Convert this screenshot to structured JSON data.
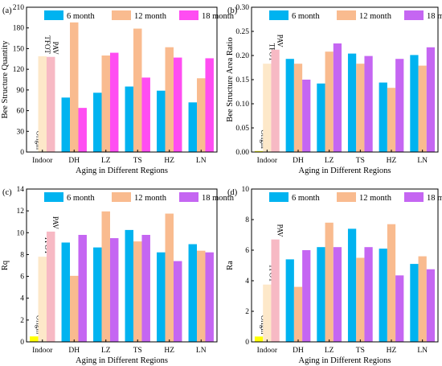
{
  "chart_data": [
    {
      "type": "bar",
      "panel_label": "(a)",
      "categories": [
        "Indoor",
        "DH",
        "LZ",
        "TS",
        "HZ",
        "LN"
      ],
      "xlabel": "Aging in Different Regions",
      "ylabel": "Bee Structure Quantity",
      "ylim": [
        0,
        210
      ],
      "yticks": [
        "0",
        "30",
        "60",
        "90",
        "120",
        "150",
        "180",
        "210"
      ],
      "grid": false,
      "legend_position": "top",
      "series": [
        {
          "name": "6 month",
          "color": "#00b3f0",
          "values": [
            null,
            79,
            86,
            95,
            89,
            72
          ]
        },
        {
          "name": "12 month",
          "color": "#f9bb8f",
          "values": [
            null,
            188,
            140,
            179,
            152,
            107
          ]
        },
        {
          "name": "18 month",
          "color": "#ff4df2",
          "values": [
            null,
            64,
            144,
            108,
            137,
            136
          ]
        }
      ],
      "indoor_bars": [
        {
          "label": "Origin",
          "value": 0,
          "color": "#ffff00"
        },
        {
          "label": "TFOT",
          "value": 139,
          "color": "#fde8c9"
        },
        {
          "label": "PAV",
          "value": 138,
          "color": "#f7b9c4"
        }
      ]
    },
    {
      "type": "bar",
      "panel_label": "(b)",
      "categories": [
        "Indoor",
        "DH",
        "LZ",
        "TS",
        "HZ",
        "LN"
      ],
      "xlabel": "Aging in Different Regions",
      "ylabel": "Bee Structure Area Ratio",
      "ylim": [
        0,
        0.3
      ],
      "yticks": [
        "0.00",
        "0.05",
        "0.10",
        "0.15",
        "0.20",
        "0.25",
        "0.30"
      ],
      "grid": false,
      "legend_position": "top",
      "series": [
        {
          "name": "6 month",
          "color": "#00b3f0",
          "values": [
            null,
            0.193,
            0.142,
            0.204,
            0.144,
            0.201
          ]
        },
        {
          "name": "12 month",
          "color": "#f9bb8f",
          "values": [
            null,
            0.183,
            0.208,
            0.183,
            0.133,
            0.179
          ]
        },
        {
          "name": "18 month",
          "color": "#c566f2",
          "values": [
            null,
            0.15,
            0.225,
            0.199,
            0.193,
            0.217
          ]
        }
      ],
      "indoor_bars": [
        {
          "label": "Origin",
          "value": 0.002,
          "color": "#ffff00"
        },
        {
          "label": "TFOT",
          "value": 0.183,
          "color": "#fde8c9"
        },
        {
          "label": "PAV",
          "value": 0.212,
          "color": "#f7b9c4"
        }
      ]
    },
    {
      "type": "bar",
      "panel_label": "(c)",
      "categories": [
        "Indoor",
        "DH",
        "LZ",
        "TS",
        "HZ",
        "LN"
      ],
      "xlabel": "Aging in Different Regions",
      "ylabel": "Rq",
      "ylim": [
        0,
        14
      ],
      "yticks": [
        "0",
        "2",
        "4",
        "6",
        "8",
        "10",
        "12",
        "14"
      ],
      "grid": false,
      "legend_position": "top",
      "series": [
        {
          "name": "6 month",
          "color": "#00b3f0",
          "values": [
            null,
            9.1,
            8.65,
            10.25,
            8.2,
            8.95
          ]
        },
        {
          "name": "12 month",
          "color": "#f9bb8f",
          "values": [
            null,
            6.05,
            11.95,
            9.2,
            11.75,
            8.35
          ]
        },
        {
          "name": "18 month",
          "color": "#c566f2",
          "values": [
            null,
            9.8,
            9.5,
            9.8,
            7.4,
            8.2
          ]
        }
      ],
      "indoor_bars": [
        {
          "label": "Origin",
          "value": 0.5,
          "color": "#ffff00"
        },
        {
          "label": "TFOT",
          "value": 7.8,
          "color": "#fde8c9"
        },
        {
          "label": "PAV",
          "value": 10.1,
          "color": "#f7b9c4"
        }
      ]
    },
    {
      "type": "bar",
      "panel_label": "(d)",
      "categories": [
        "Indoor",
        "DH",
        "LZ",
        "TS",
        "HZ",
        "LN"
      ],
      "xlabel": "Aging in Different Regions",
      "ylabel": "Ra",
      "ylim": [
        0,
        10
      ],
      "yticks": [
        "0",
        "2",
        "4",
        "6",
        "8",
        "10"
      ],
      "grid": false,
      "legend_position": "top",
      "series": [
        {
          "name": "6 month",
          "color": "#00b3f0",
          "values": [
            null,
            5.4,
            6.2,
            7.4,
            6.1,
            5.1
          ]
        },
        {
          "name": "12 month",
          "color": "#f9bb8f",
          "values": [
            null,
            3.6,
            7.8,
            5.5,
            7.7,
            5.6
          ]
        },
        {
          "name": "18 month",
          "color": "#c566f2",
          "values": [
            null,
            6.0,
            6.2,
            6.2,
            4.35,
            4.75
          ]
        }
      ],
      "indoor_bars": [
        {
          "label": "Origin",
          "value": 0.35,
          "color": "#ffff00"
        },
        {
          "label": "TFOT",
          "value": 3.75,
          "color": "#fde8c9"
        },
        {
          "label": "PAV",
          "value": 6.7,
          "color": "#f7b9c4"
        }
      ]
    }
  ]
}
